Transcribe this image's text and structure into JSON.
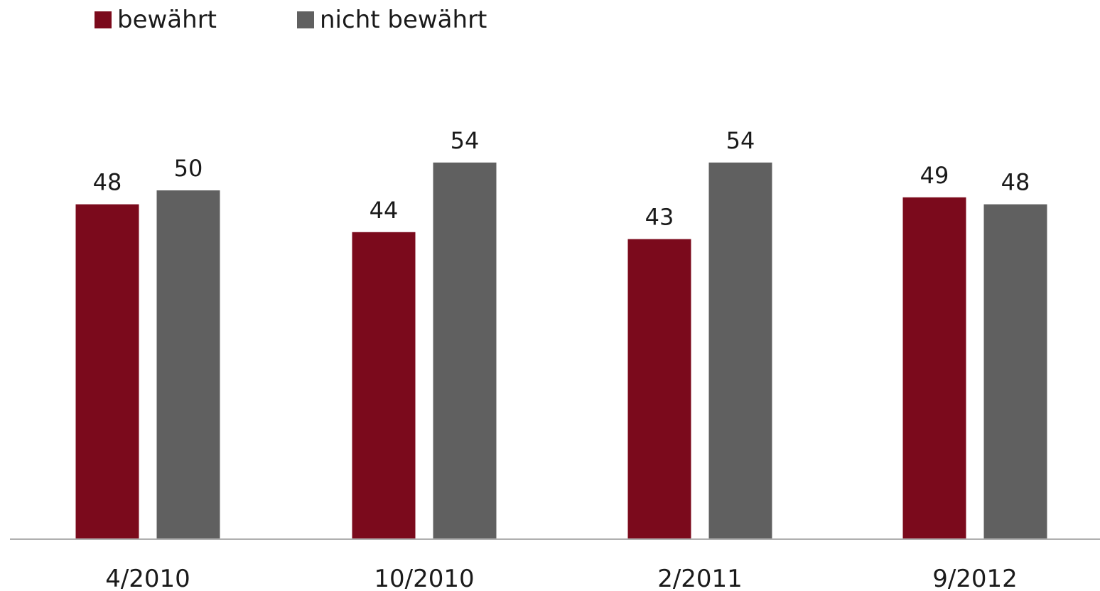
{
  "chart_data": {
    "type": "bar",
    "categories": [
      "4/2010",
      "10/2010",
      "2/2011",
      "9/2012"
    ],
    "series": [
      {
        "name": "bewährt",
        "color": "#7b0a1c",
        "values": [
          48,
          44,
          43,
          49
        ]
      },
      {
        "name": "nicht bewährt",
        "color": "#606060",
        "values": [
          50,
          54,
          54,
          48
        ]
      }
    ],
    "title": "",
    "xlabel": "",
    "ylabel": "",
    "ylim": [
      0,
      100
    ],
    "grid": false,
    "data_labels": true,
    "legend_position": "top-left"
  }
}
